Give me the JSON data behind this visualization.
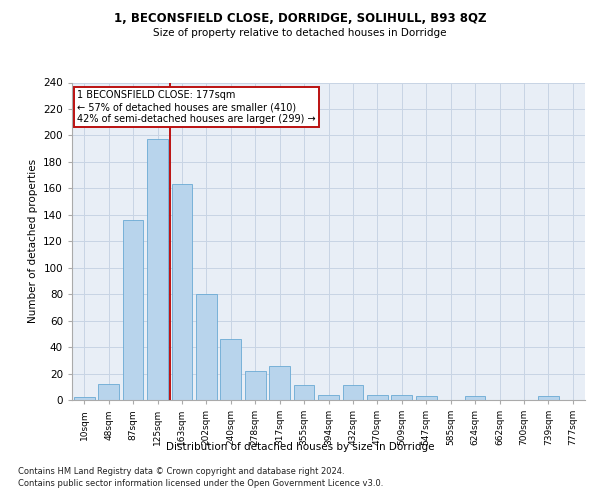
{
  "title1": "1, BECONSFIELD CLOSE, DORRIDGE, SOLIHULL, B93 8QZ",
  "title2": "Size of property relative to detached houses in Dorridge",
  "xlabel": "Distribution of detached houses by size in Dorridge",
  "ylabel": "Number of detached properties",
  "bar_labels": [
    "10sqm",
    "48sqm",
    "87sqm",
    "125sqm",
    "163sqm",
    "202sqm",
    "240sqm",
    "278sqm",
    "317sqm",
    "355sqm",
    "394sqm",
    "432sqm",
    "470sqm",
    "509sqm",
    "547sqm",
    "585sqm",
    "624sqm",
    "662sqm",
    "700sqm",
    "739sqm",
    "777sqm"
  ],
  "bar_values": [
    2,
    12,
    136,
    197,
    163,
    80,
    46,
    22,
    26,
    11,
    4,
    11,
    4,
    4,
    3,
    0,
    3,
    0,
    0,
    3,
    0
  ],
  "bar_color": "#b8d4ec",
  "bar_edge_color": "#6aaad4",
  "grid_color": "#c8d4e4",
  "background_color": "#e8eef6",
  "annotation_text": "1 BECONSFIELD CLOSE: 177sqm\n← 57% of detached houses are smaller (410)\n42% of semi-detached houses are larger (299) →",
  "vline_x": 3.5,
  "vline_color": "#bb1111",
  "annotation_box_color": "#ffffff",
  "annotation_box_edge": "#bb1111",
  "footnote1": "Contains HM Land Registry data © Crown copyright and database right 2024.",
  "footnote2": "Contains public sector information licensed under the Open Government Licence v3.0.",
  "ylim": [
    0,
    240
  ],
  "yticks": [
    0,
    20,
    40,
    60,
    80,
    100,
    120,
    140,
    160,
    180,
    200,
    220,
    240
  ]
}
